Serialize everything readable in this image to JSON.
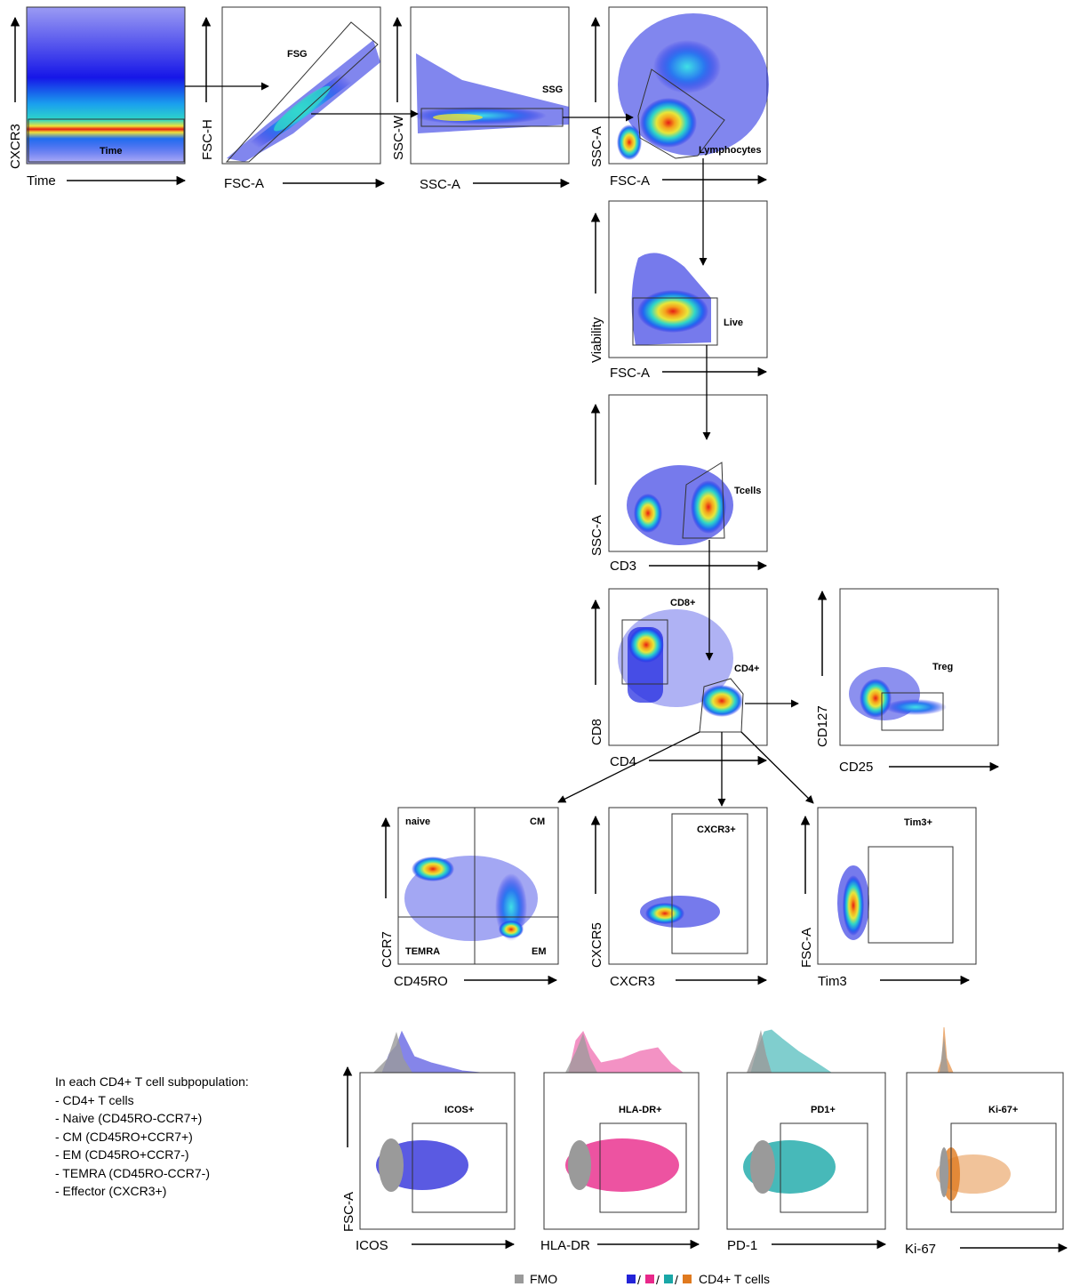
{
  "plots": [
    {
      "id": "p1",
      "xlabel": "Time",
      "ylabel": "CXCR3",
      "gates": [
        "Time"
      ]
    },
    {
      "id": "p2",
      "xlabel": "FSC-A",
      "ylabel": "FSC-H",
      "gates": [
        "FSG"
      ]
    },
    {
      "id": "p3",
      "xlabel": "SSC-A",
      "ylabel": "SSC-W",
      "gates": [
        "SSG"
      ]
    },
    {
      "id": "p4",
      "xlabel": "FSC-A",
      "ylabel": "SSC-A",
      "gates": [
        "Lymphocytes"
      ]
    },
    {
      "id": "p5",
      "xlabel": "FSC-A",
      "ylabel": "Viability",
      "gates": [
        "Live"
      ]
    },
    {
      "id": "p6",
      "xlabel": "CD3",
      "ylabel": "SSC-A",
      "gates": [
        "Tcells"
      ]
    },
    {
      "id": "p7",
      "xlabel": "CD4",
      "ylabel": "CD8",
      "gates": [
        "CD8+",
        "CD4+"
      ]
    },
    {
      "id": "p8",
      "xlabel": "CD25",
      "ylabel": "CD127",
      "gates": [
        "Treg"
      ]
    },
    {
      "id": "p9",
      "xlabel": "CD45RO",
      "ylabel": "CCR7",
      "gates": [
        "naive",
        "CM",
        "TEMRA",
        "EM"
      ]
    },
    {
      "id": "p10",
      "xlabel": "CXCR3",
      "ylabel": "CXCR5",
      "gates": [
        "CXCR3+"
      ]
    },
    {
      "id": "p11",
      "xlabel": "Tim3",
      "ylabel": "FSC-A",
      "gates": [
        "Tim3+"
      ]
    },
    {
      "id": "p12",
      "xlabel": "ICOS",
      "ylabel": "FSC-A",
      "gates": [
        "ICOS+"
      ]
    },
    {
      "id": "p13",
      "xlabel": "HLA-DR",
      "ylabel": "",
      "gates": [
        "HLA-DR+"
      ]
    },
    {
      "id": "p14",
      "xlabel": "PD-1",
      "ylabel": "",
      "gates": [
        "PD1+"
      ]
    },
    {
      "id": "p15",
      "xlabel": "Ki-67",
      "ylabel": "",
      "gates": [
        "Ki-67+"
      ]
    }
  ],
  "note": {
    "title": "In each CD4+ T cell subpopulation:",
    "items": [
      "- CD4+ T cells",
      "- Naive (CD45RO-CCR7+)",
      "- CM (CD45RO+CCR7+)",
      "- EM (CD45RO+CCR7-)",
      "- TEMRA (CD45RO-CCR7-)",
      "- Effector (CXCR3+)"
    ]
  },
  "legend": {
    "fmo_label": "FMO",
    "cd4_label": "CD4+ T cells",
    "separator": "/"
  },
  "colors": {
    "fmo": "#9a9a9a",
    "icos": "#2323d8",
    "hladr": "#e8288a",
    "pd1": "#19a7a7",
    "ki67": "#e07a1f",
    "density_low": "#0a0ae6",
    "density_mid": "#19c8e6",
    "density_high": "#e61e14"
  }
}
